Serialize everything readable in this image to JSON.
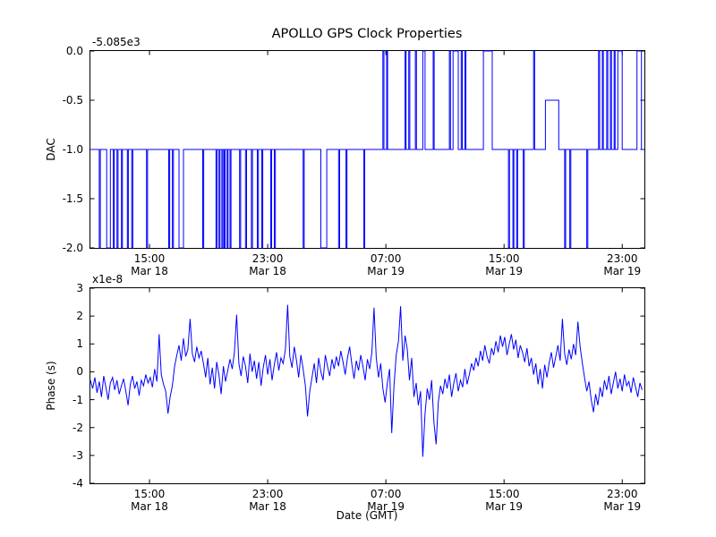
{
  "title": "APOLLO GPS Clock Properties",
  "xlabel": "Date (GMT)",
  "line_color": "#0000ff",
  "chart_data": [
    {
      "type": "line",
      "series_name": "dac-step-series",
      "ylabel": "DAC",
      "offset_text": "-5.085e3",
      "xlim": [
        11,
        48.5
      ],
      "ylim": [
        -2,
        0
      ],
      "grid": false,
      "legend": "none",
      "yticks": {
        "values": [
          0,
          -0.5,
          -1,
          -1.5,
          -2
        ],
        "labels": [
          "0.0",
          "-0.5",
          "-1.0",
          "-1.5",
          "-2.0"
        ]
      },
      "xticks": {
        "values": [
          15,
          23,
          31,
          39,
          47
        ],
        "labels": [
          [
            "15:00",
            "Mar 18"
          ],
          [
            "23:00",
            "Mar 18"
          ],
          [
            "07:00",
            "Mar 19"
          ],
          [
            "15:00",
            "Mar 19"
          ],
          [
            "23:00",
            "Mar 19"
          ]
        ]
      },
      "draw": "step",
      "steps": [
        [
          11.0,
          -1
        ],
        [
          11.6,
          -2
        ],
        [
          11.67,
          -1
        ],
        [
          12.1,
          -2
        ],
        [
          12.35,
          -1
        ],
        [
          12.55,
          -2
        ],
        [
          12.62,
          -1
        ],
        [
          12.8,
          -2
        ],
        [
          12.87,
          -1
        ],
        [
          13.1,
          -2
        ],
        [
          13.17,
          -1
        ],
        [
          13.5,
          -2
        ],
        [
          13.57,
          -1
        ],
        [
          13.8,
          -2
        ],
        [
          13.87,
          -1
        ],
        [
          14.8,
          -2
        ],
        [
          14.87,
          -1
        ],
        [
          16.3,
          -2
        ],
        [
          16.37,
          -1
        ],
        [
          16.55,
          -2
        ],
        [
          16.62,
          -1
        ],
        [
          17.0,
          -2
        ],
        [
          17.3,
          -1
        ],
        [
          18.6,
          -2
        ],
        [
          18.67,
          -1
        ],
        [
          19.5,
          -2
        ],
        [
          19.57,
          -1
        ],
        [
          19.7,
          -2
        ],
        [
          19.77,
          -1
        ],
        [
          19.9,
          -2
        ],
        [
          19.97,
          -1
        ],
        [
          20.05,
          -2
        ],
        [
          20.12,
          -1
        ],
        [
          20.25,
          -2
        ],
        [
          20.32,
          -1
        ],
        [
          20.45,
          -2
        ],
        [
          20.52,
          -1
        ],
        [
          21.1,
          -2
        ],
        [
          21.17,
          -1
        ],
        [
          21.5,
          -2
        ],
        [
          21.57,
          -1
        ],
        [
          21.9,
          -2
        ],
        [
          21.97,
          -1
        ],
        [
          22.3,
          -2
        ],
        [
          22.37,
          -1
        ],
        [
          22.6,
          -2
        ],
        [
          22.67,
          -1
        ],
        [
          23.2,
          -2
        ],
        [
          23.27,
          -1
        ],
        [
          23.45,
          -2
        ],
        [
          23.52,
          -1
        ],
        [
          25.4,
          -2
        ],
        [
          25.47,
          -1
        ],
        [
          26.6,
          -2
        ],
        [
          27.0,
          -1
        ],
        [
          27.8,
          -2
        ],
        [
          27.87,
          -1
        ],
        [
          28.3,
          -2
        ],
        [
          28.37,
          -1
        ],
        [
          29.5,
          -2
        ],
        [
          29.57,
          -1
        ],
        [
          30.8,
          0
        ],
        [
          30.87,
          -1
        ],
        [
          31.05,
          0
        ],
        [
          31.12,
          -1
        ],
        [
          32.3,
          0
        ],
        [
          32.37,
          -1
        ],
        [
          32.55,
          0
        ],
        [
          32.62,
          -1
        ],
        [
          33.0,
          0
        ],
        [
          33.07,
          -1
        ],
        [
          33.5,
          0
        ],
        [
          33.65,
          -1
        ],
        [
          34.2,
          0
        ],
        [
          34.27,
          -1
        ],
        [
          35.3,
          0
        ],
        [
          35.37,
          -1
        ],
        [
          35.55,
          0
        ],
        [
          35.9,
          -1
        ],
        [
          36.1,
          0
        ],
        [
          36.17,
          -1
        ],
        [
          36.35,
          0
        ],
        [
          36.42,
          -1
        ],
        [
          37.6,
          0
        ],
        [
          38.2,
          -1
        ],
        [
          39.3,
          -2
        ],
        [
          39.37,
          -1
        ],
        [
          39.6,
          -2
        ],
        [
          39.67,
          -1
        ],
        [
          39.85,
          -2
        ],
        [
          39.92,
          -1
        ],
        [
          40.3,
          -2
        ],
        [
          40.37,
          -1
        ],
        [
          41.0,
          0
        ],
        [
          41.07,
          -1
        ],
        [
          41.8,
          -0.5
        ],
        [
          42.7,
          -1
        ],
        [
          43.1,
          -2
        ],
        [
          43.17,
          -1
        ],
        [
          43.45,
          -2
        ],
        [
          43.52,
          -1
        ],
        [
          44.6,
          -2
        ],
        [
          44.67,
          -1
        ],
        [
          45.4,
          0
        ],
        [
          45.47,
          -1
        ],
        [
          45.65,
          0
        ],
        [
          45.72,
          -1
        ],
        [
          45.95,
          0
        ],
        [
          46.02,
          -1
        ],
        [
          46.2,
          0
        ],
        [
          46.27,
          -1
        ],
        [
          46.45,
          0
        ],
        [
          46.52,
          -1
        ],
        [
          46.7,
          0
        ],
        [
          47.0,
          -1
        ],
        [
          48.0,
          0
        ],
        [
          48.3,
          -1
        ],
        [
          48.5,
          -1
        ]
      ]
    },
    {
      "type": "line",
      "series_name": "phase-noise-series",
      "ylabel": "Phase (s)",
      "multiplier_text": "x1e-8",
      "xlim": [
        11,
        48.5
      ],
      "ylim": [
        -4,
        3
      ],
      "grid": false,
      "legend": "none",
      "yticks": {
        "values": [
          3,
          2,
          1,
          0,
          -1,
          -2,
          -3,
          -4
        ],
        "labels": [
          "3",
          "2",
          "1",
          "0",
          "-1",
          "-2",
          "-3",
          "-4"
        ]
      },
      "xticks": {
        "values": [
          15,
          23,
          31,
          39,
          47
        ],
        "labels": [
          [
            "15:00",
            "Mar 18"
          ],
          [
            "23:00",
            "Mar 18"
          ],
          [
            "07:00",
            "Mar 19"
          ],
          [
            "15:00",
            "Mar 19"
          ],
          [
            "23:00",
            "Mar 19"
          ]
        ]
      },
      "draw": "line",
      "x0": 11.0,
      "dx": 0.15,
      "y": [
        -0.3,
        -0.6,
        -0.2,
        -0.75,
        -0.35,
        -0.9,
        -0.15,
        -0.55,
        -1.0,
        -0.4,
        -0.2,
        -0.65,
        -0.3,
        -0.8,
        -0.5,
        -0.25,
        -0.7,
        -1.2,
        -0.45,
        -0.15,
        -0.6,
        -0.35,
        -0.85,
        -0.3,
        -0.5,
        -0.1,
        -0.4,
        -0.2,
        -0.55,
        0.1,
        -0.35,
        1.35,
        -0.1,
        -0.45,
        -0.7,
        -1.5,
        -0.9,
        -0.5,
        0.2,
        0.6,
        0.95,
        0.4,
        1.2,
        0.55,
        0.8,
        1.9,
        0.65,
        0.35,
        0.9,
        0.5,
        0.75,
        0.3,
        -0.2,
        0.5,
        -0.45,
        0.15,
        -0.6,
        0.35,
        -0.1,
        -0.8,
        0.2,
        -0.35,
        0.05,
        0.45,
        0.1,
        0.7,
        2.05,
        0.3,
        -0.15,
        0.55,
        0.2,
        -0.4,
        0.65,
        0.0,
        0.4,
        -0.25,
        0.35,
        -0.5,
        0.15,
        0.6,
        -0.1,
        0.45,
        -0.3,
        0.25,
        0.7,
        0.05,
        0.5,
        0.3,
        0.8,
        2.4,
        0.55,
        0.15,
        0.9,
        0.4,
        -0.2,
        0.6,
        0.1,
        -0.5,
        -1.6,
        -0.7,
        -0.2,
        0.3,
        -0.4,
        0.5,
        0.0,
        -0.3,
        0.6,
        0.2,
        -0.15,
        0.45,
        0.1,
        0.55,
        0.2,
        0.75,
        0.35,
        -0.1,
        0.5,
        0.9,
        0.25,
        -0.25,
        0.4,
        0.05,
        0.6,
        0.2,
        -0.3,
        0.45,
        0.1,
        0.7,
        2.3,
        0.5,
        -0.2,
        0.3,
        -0.6,
        -1.1,
        -0.4,
        0.1,
        -2.2,
        -0.5,
        0.6,
        1.1,
        2.35,
        0.4,
        1.3,
        0.8,
        -0.3,
        0.5,
        -0.9,
        -0.4,
        -1.2,
        -0.7,
        -3.05,
        -1.5,
        -0.6,
        -1.0,
        -0.3,
        -1.8,
        -2.6,
        -1.1,
        -0.5,
        -0.8,
        -0.25,
        -0.6,
        -0.1,
        -0.9,
        -0.4,
        -0.05,
        -0.7,
        -0.3,
        -0.55,
        0.1,
        -0.45,
        -0.1,
        0.3,
        0.05,
        0.5,
        0.2,
        0.75,
        0.4,
        0.95,
        0.55,
        0.3,
        0.85,
        0.6,
        1.1,
        0.7,
        1.3,
        0.9,
        1.25,
        0.6,
        1.0,
        1.35,
        0.8,
        1.15,
        0.5,
        0.95,
        0.7,
        0.35,
        0.85,
        0.2,
        0.5,
        -0.1,
        0.3,
        -0.45,
        0.1,
        -0.6,
        0.25,
        -0.2,
        0.3,
        0.7,
        0.15,
        0.55,
        0.95,
        0.4,
        1.9,
        0.65,
        0.25,
        0.8,
        0.45,
        1.0,
        0.6,
        1.8,
        0.9,
        0.3,
        -0.2,
        -0.7,
        -0.35,
        -1.0,
        -1.45,
        -0.8,
        -1.2,
        -0.55,
        -0.9,
        -0.3,
        -0.65,
        -0.15,
        -0.8,
        -0.4,
        0.0,
        -0.6,
        -0.25,
        -0.7,
        -0.1,
        -0.5,
        -0.35,
        -0.75,
        -0.2,
        -0.55,
        -0.9,
        -0.4,
        -0.65
      ]
    }
  ]
}
